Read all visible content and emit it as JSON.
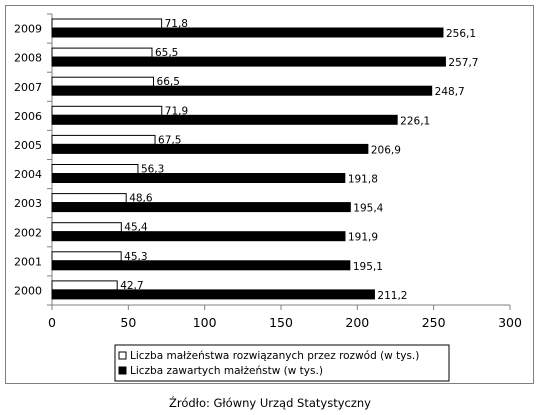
{
  "source_note": "Źródło: Główny Urząd Statystyczny",
  "colors": {
    "divorce_bar": "#ffffff",
    "marriage_bar": "#000000",
    "bar_stroke": "#000000",
    "axis": "#808080"
  },
  "chart_data": {
    "type": "bar",
    "orientation": "horizontal",
    "title": "",
    "xlabel": "",
    "ylabel": "",
    "categories": [
      "2009",
      "2008",
      "2007",
      "2006",
      "2005",
      "2004",
      "2003",
      "2002",
      "2001",
      "2000"
    ],
    "series": [
      {
        "name": "Liczba małżeństwa rozwiązanych przez rozwód (w tys.)",
        "values": [
          71.8,
          65.5,
          66.5,
          71.9,
          67.5,
          56.3,
          48.6,
          45.4,
          45.3,
          42.7
        ],
        "labels": [
          "71,8",
          "65,5",
          "66,5",
          "71,9",
          "67,5",
          "56,3",
          "48,6",
          "45,4",
          "45,3",
          "42,7"
        ]
      },
      {
        "name": "Liczba zawartych małżeństw (w tys.)",
        "values": [
          256.1,
          257.7,
          248.7,
          226.1,
          206.9,
          191.8,
          195.4,
          191.9,
          195.1,
          211.2
        ],
        "labels": [
          "256,1",
          "257,7",
          "248,7",
          "226,1",
          "206,9",
          "191,8",
          "195,4",
          "191,9",
          "195,1",
          "211,2"
        ]
      }
    ],
    "xlim": [
      0,
      300
    ],
    "xticks": [
      0,
      50,
      100,
      150,
      200,
      250,
      300
    ],
    "grid": false,
    "legend_position": "bottom"
  }
}
